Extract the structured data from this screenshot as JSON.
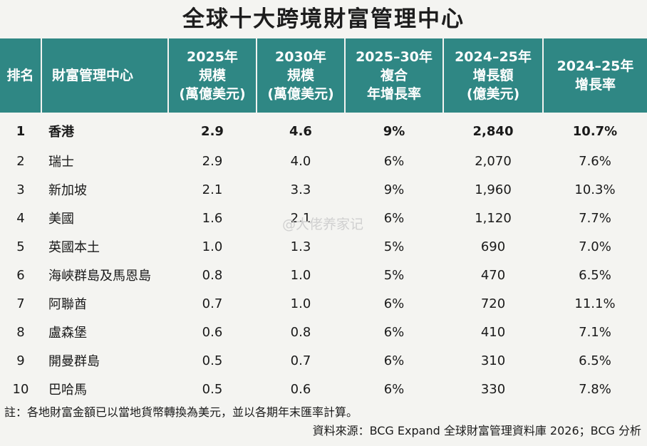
{
  "title": "全球十大跨境財富管理中心",
  "table": {
    "headers": [
      [
        "排名"
      ],
      [
        "財富管理中心"
      ],
      [
        "2025年",
        "規模",
        "(萬億美元)"
      ],
      [
        "2030年",
        "規模",
        "(萬億美元)"
      ],
      [
        "2025–30年",
        "複合",
        "年增長率"
      ],
      [
        "2024–25年",
        "增長額",
        "(億美元)"
      ],
      [
        "2024–25年",
        "增長率"
      ]
    ],
    "rows": [
      [
        "1",
        "香港",
        "2.9",
        "4.6",
        "9%",
        "2,840",
        "10.7%"
      ],
      [
        "2",
        "瑞士",
        "2.9",
        "4.0",
        "6%",
        "2,070",
        "7.6%"
      ],
      [
        "3",
        "新加坡",
        "2.1",
        "3.3",
        "9%",
        "1,960",
        "10.3%"
      ],
      [
        "4",
        "美國",
        "1.6",
        "2.1",
        "6%",
        "1,120",
        "7.7%"
      ],
      [
        "5",
        "英國本土",
        "1.0",
        "1.3",
        "5%",
        "690",
        "7.0%"
      ],
      [
        "6",
        "海峽群島及馬恩島",
        "0.8",
        "1.0",
        "5%",
        "470",
        "6.5%"
      ],
      [
        "7",
        "阿聯酋",
        "0.7",
        "1.0",
        "6%",
        "720",
        "11.1%"
      ],
      [
        "8",
        "盧森堡",
        "0.6",
        "0.8",
        "6%",
        "410",
        "7.1%"
      ],
      [
        "9",
        "開曼群島",
        "0.5",
        "0.7",
        "6%",
        "310",
        "6.5%"
      ],
      [
        "10",
        "巴哈馬",
        "0.5",
        "0.6",
        "6%",
        "330",
        "7.8%"
      ]
    ]
  },
  "note": "註：各地財富金額已以當地貨幣轉換為美元，並以各期年末匯率計算。",
  "source": "資料來源：BCG Expand 全球財富管理資料庫 2026；BCG 分析",
  "watermark": "@大佬养家记",
  "colors": {
    "header_bg": "#2f8784",
    "header_text": "#ffffff",
    "page_bg": "#f4f4f1"
  }
}
